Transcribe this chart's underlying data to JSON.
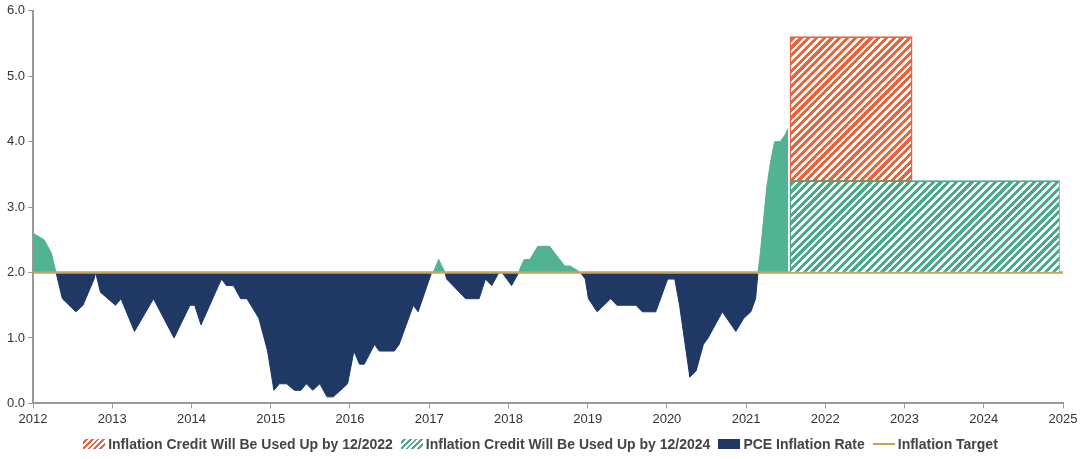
{
  "chart_data": {
    "type": "area",
    "legend": "bottom",
    "grid": false,
    "marker": "none",
    "xlim": [
      2012,
      2025
    ],
    "xticks": [
      2012,
      2013,
      2014,
      2015,
      2016,
      2017,
      2018,
      2019,
      2020,
      2021,
      2022,
      2023,
      2024,
      2025
    ],
    "ylim": [
      0,
      6
    ],
    "yticks": [
      {
        "value": 0,
        "label": "0.0"
      },
      {
        "value": 1,
        "label": "1.0"
      },
      {
        "value": 2,
        "label": "2.0"
      },
      {
        "value": 3,
        "label": "3.0"
      },
      {
        "value": 4,
        "label": "4.0"
      },
      {
        "value": 5,
        "label": "5.0"
      },
      {
        "value": 6,
        "label": "6.0"
      }
    ],
    "series": [
      {
        "name": "Inflation Credit Will Be Used Up by 12/2022",
        "color": "#e8643c",
        "x": [
          2021.55,
          2023.1
        ],
        "values": [
          5.6,
          5.6
        ]
      },
      {
        "name": "Inflation Credit Will Be Used Up by 12/2024",
        "color": "#4aaa88",
        "x": [
          2021.55,
          2024.96
        ],
        "values": [
          3.4,
          3.4
        ]
      },
      {
        "name": "PCE Inflation Rate",
        "color": "#1f3864",
        "x": [
          2012.29,
          2012.37,
          2012.54,
          2012.63,
          2012.77,
          2012.79,
          2012.85,
          2013.04,
          2013.11,
          2013.28,
          2013.52,
          2013.78,
          2013.98,
          2014.04,
          2014.12,
          2014.34,
          2014.38,
          2014.44,
          2014.53,
          2014.62,
          2014.7,
          2014.85,
          2014.96,
          2015.04,
          2015.11,
          2015.2,
          2015.3,
          2015.38,
          2015.45,
          2015.53,
          2015.62,
          2015.71,
          2015.79,
          2015.97,
          2016.05,
          2016.12,
          2016.18,
          2016.31,
          2016.37,
          2016.56,
          2016.62,
          2016.8,
          2016.86,
          2017.03,
          2017.05,
          2017.12,
          2017.2,
          2017.22,
          2017.46,
          2017.63,
          2017.71,
          2017.79,
          2017.88,
          2017.92,
          2018.04,
          2018.13,
          2018.16,
          2018.2,
          2018.27,
          2018.37,
          2018.52,
          2018.71,
          2018.78,
          2018.91,
          2018.97,
          2019.01,
          2019.12,
          2019.29,
          2019.37,
          2019.61,
          2019.69,
          2019.86,
          2020.01,
          2020.1,
          2020.16,
          2020.29,
          2020.37,
          2020.46,
          2020.52,
          2020.7,
          2020.87,
          2020.97,
          2021.06,
          2021.12,
          2021.15
        ],
        "values": [
          2.0,
          1.6,
          1.4,
          1.5,
          1.9,
          2.0,
          1.7,
          1.5,
          1.6,
          1.1,
          1.6,
          1.0,
          1.5,
          1.5,
          1.2,
          1.8,
          1.9,
          1.8,
          1.8,
          1.6,
          1.6,
          1.3,
          0.8,
          0.2,
          0.3,
          0.3,
          0.2,
          0.2,
          0.3,
          0.2,
          0.3,
          0.1,
          0.1,
          0.3,
          0.8,
          0.6,
          0.6,
          0.9,
          0.8,
          0.8,
          0.9,
          1.5,
          1.4,
          2.0,
          2.0,
          null,
          2.0,
          1.9,
          1.6,
          1.6,
          1.9,
          1.8,
          2.0,
          2.0,
          1.8,
          2.0,
          null,
          null,
          null,
          null,
          null,
          null,
          null,
          2.0,
          1.9,
          1.6,
          1.4,
          1.6,
          1.5,
          1.5,
          1.4,
          1.4,
          1.9,
          1.9,
          1.5,
          0.4,
          0.5,
          0.9,
          1.0,
          1.4,
          1.1,
          1.3,
          1.4,
          1.6,
          2.0
        ]
      },
      {
        "color": "#52b394",
        "x": [
          2012.0,
          2012.14,
          2012.23,
          2012.29,
          2012.37,
          2012.54,
          2012.63,
          2012.77,
          2012.79,
          2012.85,
          2013.04,
          2013.11,
          2013.28,
          2013.52,
          2013.78,
          2013.98,
          2014.04,
          2014.12,
          2014.34,
          2014.38,
          2014.44,
          2014.53,
          2014.62,
          2014.7,
          2014.85,
          2014.96,
          2015.04,
          2015.11,
          2015.2,
          2015.3,
          2015.38,
          2015.45,
          2015.53,
          2015.62,
          2015.71,
          2015.79,
          2015.97,
          2016.05,
          2016.12,
          2016.18,
          2016.31,
          2016.37,
          2016.56,
          2016.62,
          2016.8,
          2016.86,
          2017.03,
          2017.05,
          2017.12,
          2017.2,
          2017.22,
          2017.46,
          2017.63,
          2017.71,
          2017.79,
          2017.88,
          2017.92,
          2018.04,
          2018.13,
          2018.16,
          2018.2,
          2018.27,
          2018.37,
          2018.52,
          2018.71,
          2018.78,
          2018.91,
          2018.97,
          2019.01,
          2019.12,
          2019.29,
          2019.37,
          2019.61,
          2019.69,
          2019.86,
          2020.01,
          2020.1,
          2020.16,
          2020.29,
          2020.37,
          2020.46,
          2020.52,
          2020.7,
          2020.87,
          2020.97,
          2021.06,
          2021.12,
          2021.15,
          2021.18,
          2021.26,
          2021.31,
          2021.36,
          2021.43,
          2021.49,
          2021.53
        ],
        "values": [
          2.6,
          2.5,
          2.3,
          2.0,
          null,
          null,
          null,
          null,
          null,
          null,
          null,
          null,
          null,
          null,
          null,
          null,
          null,
          null,
          null,
          null,
          null,
          null,
          null,
          null,
          null,
          null,
          null,
          null,
          null,
          null,
          null,
          null,
          null,
          null,
          null,
          null,
          null,
          null,
          null,
          null,
          null,
          null,
          null,
          null,
          null,
          null,
          null,
          2.0,
          2.2,
          2.0,
          null,
          null,
          null,
          null,
          null,
          null,
          null,
          null,
          2.0,
          2.1,
          2.2,
          2.2,
          2.4,
          2.4,
          2.1,
          2.1,
          2.0,
          null,
          null,
          null,
          null,
          null,
          null,
          null,
          null,
          null,
          null,
          null,
          null,
          null,
          null,
          null,
          null,
          null,
          null,
          null,
          null,
          2.0,
          2.3,
          3.3,
          3.7,
          4.0,
          4.0,
          4.1,
          4.2
        ]
      }
    ],
    "ref_lines": [
      {
        "axis": "y",
        "value": 2.0,
        "label": "Inflation Target",
        "color": "#c8a45a"
      }
    ]
  }
}
